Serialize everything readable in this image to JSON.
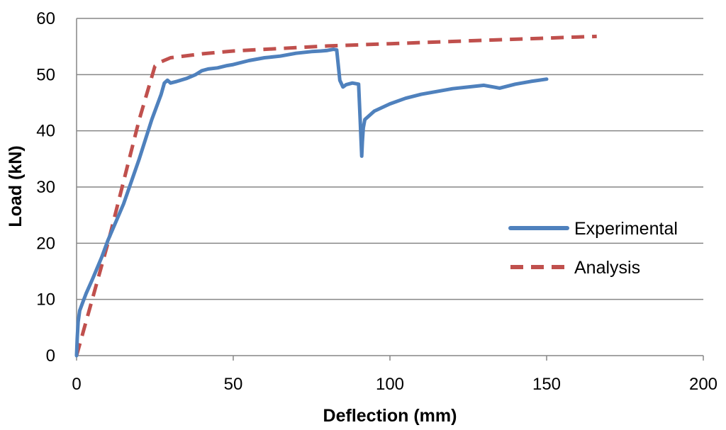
{
  "chart_data": {
    "type": "line",
    "title": "",
    "xlabel": "Deflection (mm)",
    "ylabel": "Load (kN)",
    "xlim": [
      0,
      200
    ],
    "ylim": [
      0,
      60
    ],
    "xticks": [
      0,
      50,
      100,
      150,
      200
    ],
    "yticks": [
      0,
      10,
      20,
      30,
      40,
      50,
      60
    ],
    "grid": "horizontal",
    "legend_position": "right",
    "series": [
      {
        "name": "Experimental",
        "color": "#4F81BD",
        "style": "solid",
        "x": [
          0,
          0.2,
          0.5,
          1,
          2,
          3,
          5,
          8,
          10,
          15,
          20,
          24,
          27,
          28,
          29,
          30,
          32,
          35,
          38,
          40,
          42,
          45,
          48,
          50,
          55,
          60,
          65,
          70,
          75,
          78,
          80,
          82,
          83,
          84,
          85,
          86,
          88,
          90,
          90.5,
          91,
          91.2,
          91.5,
          92,
          95,
          100,
          105,
          110,
          120,
          130,
          133,
          135,
          140,
          145,
          150
        ],
        "y": [
          0,
          3,
          6,
          8,
          9.5,
          11,
          13.5,
          17.5,
          20.5,
          27,
          35,
          42,
          46.5,
          48.5,
          49,
          48.5,
          48.8,
          49.3,
          50,
          50.7,
          51,
          51.2,
          51.6,
          51.8,
          52.5,
          53,
          53.3,
          53.8,
          54.1,
          54.2,
          54.3,
          54.5,
          54.4,
          49,
          47.8,
          48.2,
          48.5,
          48.3,
          42,
          35.5,
          38,
          40.5,
          42,
          43.5,
          44.8,
          45.8,
          46.5,
          47.5,
          48.1,
          47.8,
          47.6,
          48.3,
          48.8,
          49.2
        ]
      },
      {
        "name": "Analysis",
        "color": "#C0504D",
        "style": "dashed",
        "x": [
          0,
          5,
          10,
          15,
          20,
          25,
          27,
          30,
          40,
          50,
          60,
          70,
          80,
          90,
          100,
          110,
          120,
          130,
          140,
          150,
          160,
          166
        ],
        "y": [
          0,
          10,
          20,
          31,
          42,
          51.5,
          52.3,
          53,
          53.7,
          54.2,
          54.5,
          54.8,
          55.1,
          55.3,
          55.5,
          55.7,
          55.9,
          56.1,
          56.3,
          56.5,
          56.7,
          56.8
        ]
      }
    ]
  }
}
